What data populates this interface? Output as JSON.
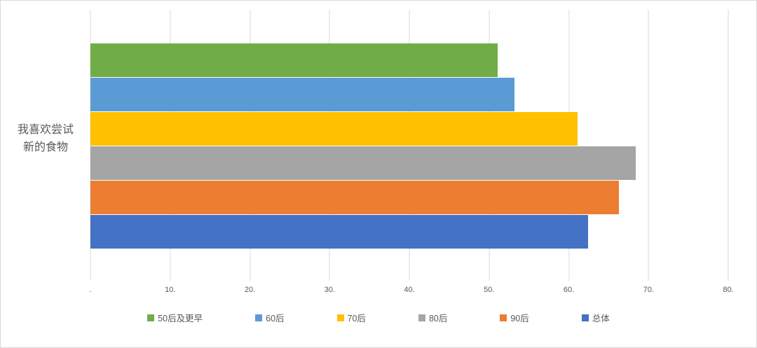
{
  "chart_data": {
    "type": "bar",
    "orientation": "horizontal",
    "title": "",
    "category_label_full": "我喜欢尝试新的食物",
    "category_label_lines": [
      "我喜欢尝试",
      "新的食物"
    ],
    "xlim": [
      0,
      80
    ],
    "x_ticks": [
      ".",
      "10.",
      "20.",
      "30.",
      "40.",
      "50.",
      "60.",
      "70.",
      "80."
    ],
    "grid": "vertical",
    "legend_position": "bottom",
    "series": [
      {
        "name": "50后及更早",
        "value": 51.1,
        "color": "#70AD47"
      },
      {
        "name": "60后",
        "value": 53.2,
        "color": "#5B9BD5"
      },
      {
        "name": "70后",
        "value": 61.1,
        "color": "#FFC000"
      },
      {
        "name": "80后",
        "value": 68.4,
        "color": "#A5A5A5"
      },
      {
        "name": "90后",
        "value": 66.3,
        "color": "#ED7D31"
      },
      {
        "name": "总体",
        "value": 62.4,
        "color": "#4472C4"
      }
    ]
  },
  "colors": {
    "gridline": "#d9d9d9",
    "axis_text": "#595959",
    "frame_border": "#d9d9d9",
    "background": "#ffffff"
  }
}
